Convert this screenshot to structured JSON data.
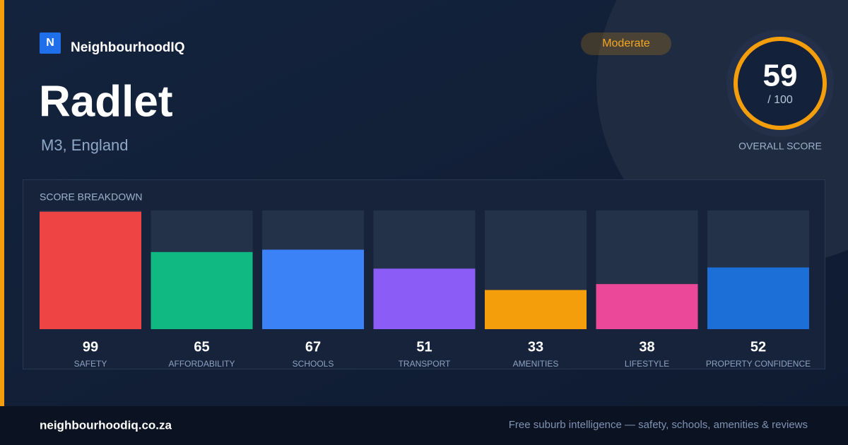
{
  "brand": {
    "logo": "N",
    "name": "NeighbourhoodIQ"
  },
  "title": "Radlet",
  "location": "M3, England",
  "badge": {
    "text": "Moderate",
    "color": "#f5a623"
  },
  "overall_score": {
    "value": 59,
    "max": {
      "value": 100,
      "label": "/ 100"
    },
    "label": "OVERALL SCORE",
    "color": "#f59e0b"
  },
  "breakdown": {
    "title": "SCORE BREAKDOWN",
    "items": [
      {
        "label": "SAFETY",
        "value": 99,
        "color": "#ef4444"
      },
      {
        "label": "AFFORDABILITY",
        "value": 65,
        "color": "#10b981"
      },
      {
        "label": "SCHOOLS",
        "value": 67,
        "color": "#3b82f6"
      },
      {
        "label": "TRANSPORT",
        "value": 51,
        "color": "#8b5cf6"
      },
      {
        "label": "AMENITIES",
        "value": 33,
        "color": "#f59e0b"
      },
      {
        "label": "LIFESTYLE",
        "value": 38,
        "color": "#ec4899"
      },
      {
        "label": "PROPERTY CONFIDENCE",
        "value": 52,
        "color": "#1d6fd8"
      }
    ]
  },
  "footer": {
    "domain": "neighbourhoodiq.co.za",
    "tagline": "Free suburb intelligence — safety, schools, amenities & reviews"
  }
}
